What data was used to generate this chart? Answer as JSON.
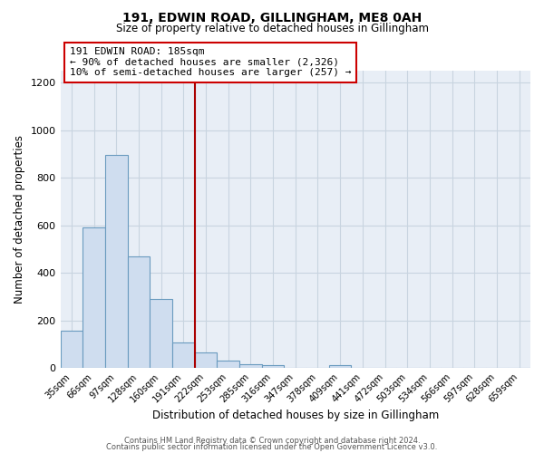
{
  "title": "191, EDWIN ROAD, GILLINGHAM, ME8 0AH",
  "subtitle": "Size of property relative to detached houses in Gillingham",
  "xlabel": "Distribution of detached houses by size in Gillingham",
  "ylabel": "Number of detached properties",
  "bar_labels": [
    "35sqm",
    "66sqm",
    "97sqm",
    "128sqm",
    "160sqm",
    "191sqm",
    "222sqm",
    "253sqm",
    "285sqm",
    "316sqm",
    "347sqm",
    "378sqm",
    "409sqm",
    "441sqm",
    "472sqm",
    "503sqm",
    "534sqm",
    "566sqm",
    "597sqm",
    "628sqm",
    "659sqm"
  ],
  "bar_values": [
    155,
    590,
    895,
    470,
    290,
    105,
    65,
    30,
    15,
    10,
    0,
    0,
    10,
    0,
    0,
    0,
    0,
    0,
    0,
    0,
    0
  ],
  "bar_color": "#cfddef",
  "bar_edge_color": "#6a9bbf",
  "vline_x_index": 5,
  "vline_color": "#aa0000",
  "annotation_title": "191 EDWIN ROAD: 185sqm",
  "annotation_line1": "← 90% of detached houses are smaller (2,326)",
  "annotation_line2": "10% of semi-detached houses are larger (257) →",
  "annotation_box_facecolor": "#ffffff",
  "annotation_box_edgecolor": "#cc0000",
  "ylim": [
    0,
    1250
  ],
  "yticks": [
    0,
    200,
    400,
    600,
    800,
    1000,
    1200
  ],
  "footer1": "Contains HM Land Registry data © Crown copyright and database right 2024.",
  "footer2": "Contains public sector information licensed under the Open Government Licence v3.0.",
  "fig_bg_color": "#ffffff",
  "plot_bg_color": "#e8eef6",
  "grid_color": "#c8d4e0"
}
